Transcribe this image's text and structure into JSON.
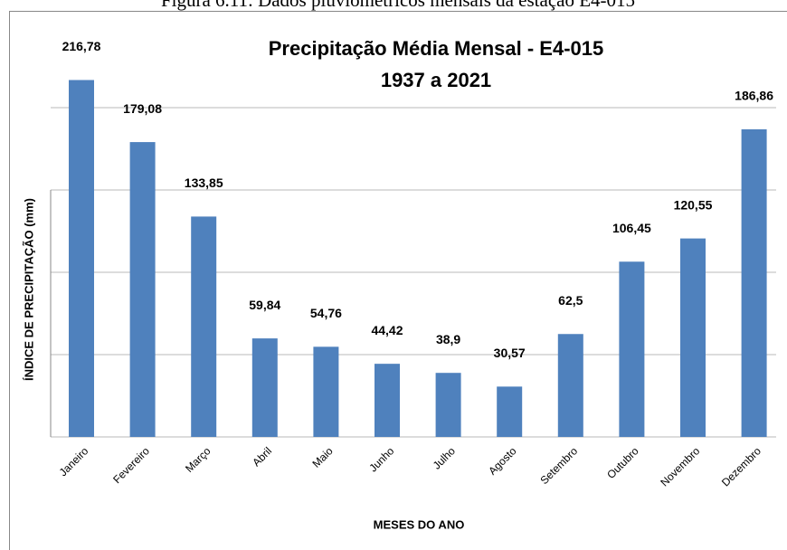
{
  "caption": "Figura 6.11: Dados pluviométricos mensais da estação E4-015",
  "chart_data": {
    "type": "bar",
    "title": [
      "Precipitação Média Mensal - E4-015",
      "1937 a 2021"
    ],
    "x_label": "MESES DO ANO",
    "y_label": "ÍNDICE DE PRECIPITAÇÃO (mm)",
    "categories": [
      "Janeiro",
      "Fevereiro",
      "Março",
      "Abril",
      "Maio",
      "Junho",
      "Julho",
      "Agosto",
      "Setembro",
      "Outubro",
      "Novembro",
      "Dezembro"
    ],
    "values": [
      216.78,
      179.08,
      133.85,
      59.84,
      54.76,
      44.42,
      38.9,
      30.57,
      62.5,
      106.45,
      120.55,
      186.86
    ],
    "value_labels": [
      "216,78",
      "179,08",
      "133,85",
      "59,84",
      "54,76",
      "44,42",
      "38,9",
      "30,57",
      "62,5",
      "106,45",
      "120,55",
      "186,86"
    ],
    "color": "#4f81bd",
    "ylim": [
      0,
      250
    ],
    "yticks": [
      0,
      50,
      100,
      150,
      200,
      250
    ],
    "grid": true
  }
}
